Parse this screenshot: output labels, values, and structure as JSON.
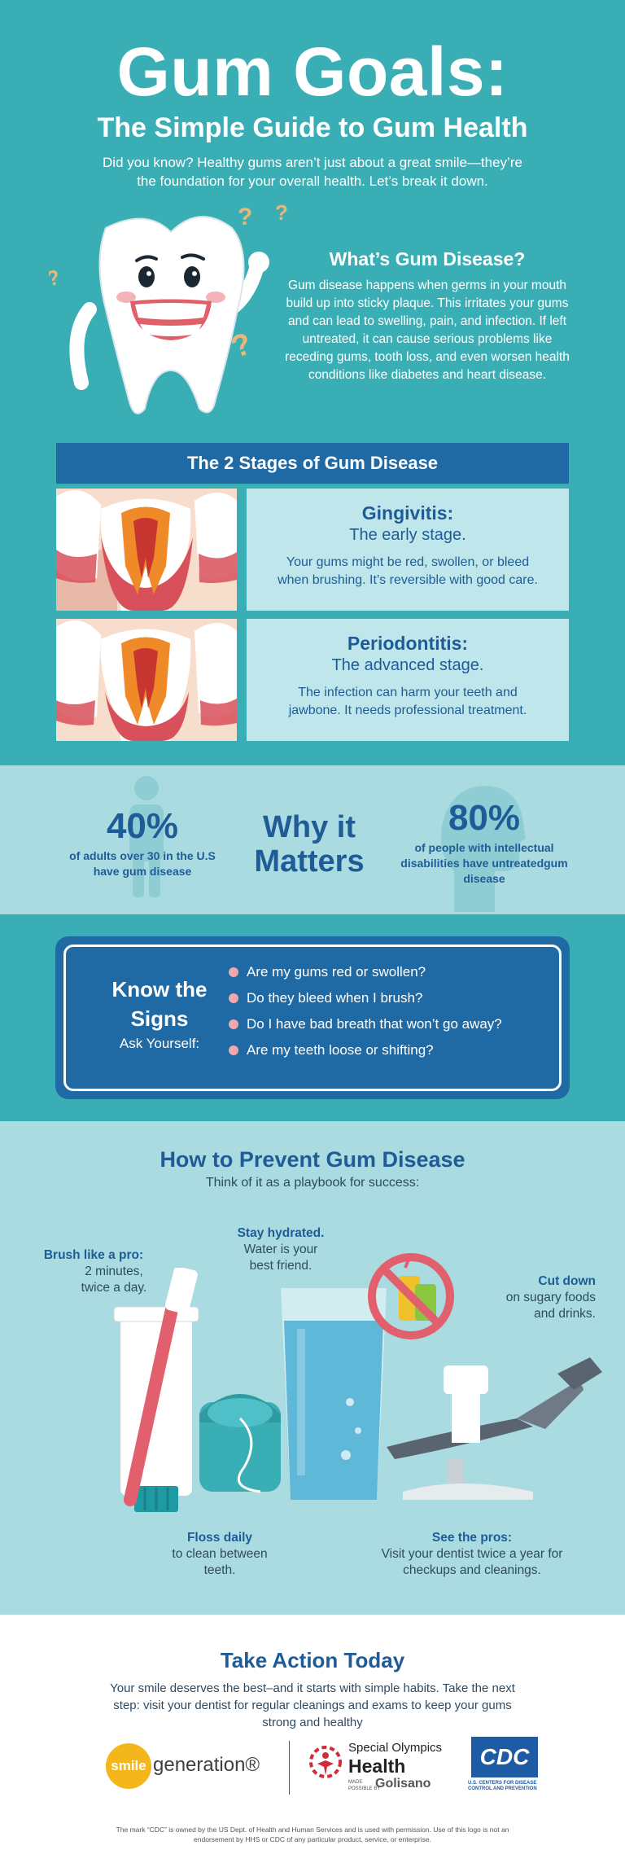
{
  "hero": {
    "title": "Gum Goals:",
    "subtitle": "The Simple Guide to Gum Health",
    "intro": "Did you know? Healthy gums aren’t just about a great smile—they’re the foundation for your overall health. Let’s break it down."
  },
  "gum_disease": {
    "title": "What’s Gum Disease?",
    "body": "Gum disease happens when germs in your mouth build up into sticky plaque. This irritates your gums and can lead to swelling, pain, and infection. If left untreated, it can cause serious problems like receding gums, tooth loss, and even worsen health conditions like diabetes and heart disease."
  },
  "stages": {
    "header": "The 2 Stages of Gum Disease",
    "items": [
      {
        "title": "Gingivitis:",
        "subtitle": "The early stage.",
        "body": "Your gums might be red, swollen, or bleed when brushing. It’s reversible with good care."
      },
      {
        "title": "Periodontitis:",
        "subtitle": "The advanced stage.",
        "body": "The infection can harm your teeth and jawbone. It needs professional treatment."
      }
    ]
  },
  "why": {
    "title": "Why it Matters",
    "stat1_value": "40%",
    "stat1_label": "of adults over 30 in the U.S have gum disease",
    "stat2_value": "80%",
    "stat2_label": "of people with intellectual disabilities have untreatedgum disease"
  },
  "signs": {
    "title": "Know the Signs",
    "ask": "Ask Yourself:",
    "items": [
      "Are my gums red or swollen?",
      "Do they bleed when I brush?",
      "Do I have bad breath that won’t go away?",
      "Are my teeth loose or shifting?"
    ]
  },
  "prevent": {
    "title": "How to Prevent Gum Disease",
    "subtitle": "Think of it as a playbook for success:",
    "tips": {
      "brush": {
        "heading": "Brush like a pro:",
        "body": "2 minutes, twice a day."
      },
      "hydrate": {
        "heading": "Stay hydrated.",
        "body": "Water is your best friend."
      },
      "cutdown": {
        "heading": "Cut down",
        "body": "on sugary foods and drinks."
      },
      "floss": {
        "heading": "Floss daily",
        "body": "to clean between teeth."
      },
      "pros": {
        "heading": "See the pros:",
        "body": "Visit your dentist twice a year for checkups and cleanings."
      }
    }
  },
  "footer": {
    "title": "Take Action Today",
    "body": "Your smile deserves the best–and it starts with simple habits. Take the next step: visit your dentist for regular cleanings and exams to keep your gums strong and healthy",
    "logos": {
      "smile_word": "smile",
      "generation_word": "generation®",
      "so_line1": "Special Olympics",
      "so_line2": "Health",
      "so_made": "MADE POSSIBLE BY",
      "so_golisano": "Golisano",
      "cdc": "CDC",
      "cdc_sub": "U.S. CENTERS FOR DISEASE CONTROL AND PREVENTION"
    },
    "disclaimer": "The mark “CDC” is owned by the US Dept. of Health and Human Services and is used with permission. Use of this logo is not an endorsement by HHS or CDC of any particular product, service, or enterprise."
  },
  "colors": {
    "teal": "#3aaeb5",
    "light_teal": "#a9dbe0",
    "navy": "#1f6aa5",
    "text_blue": "#1f5c97",
    "accent_pink": "#f2a6b0",
    "gum_red": "#d8505a"
  }
}
